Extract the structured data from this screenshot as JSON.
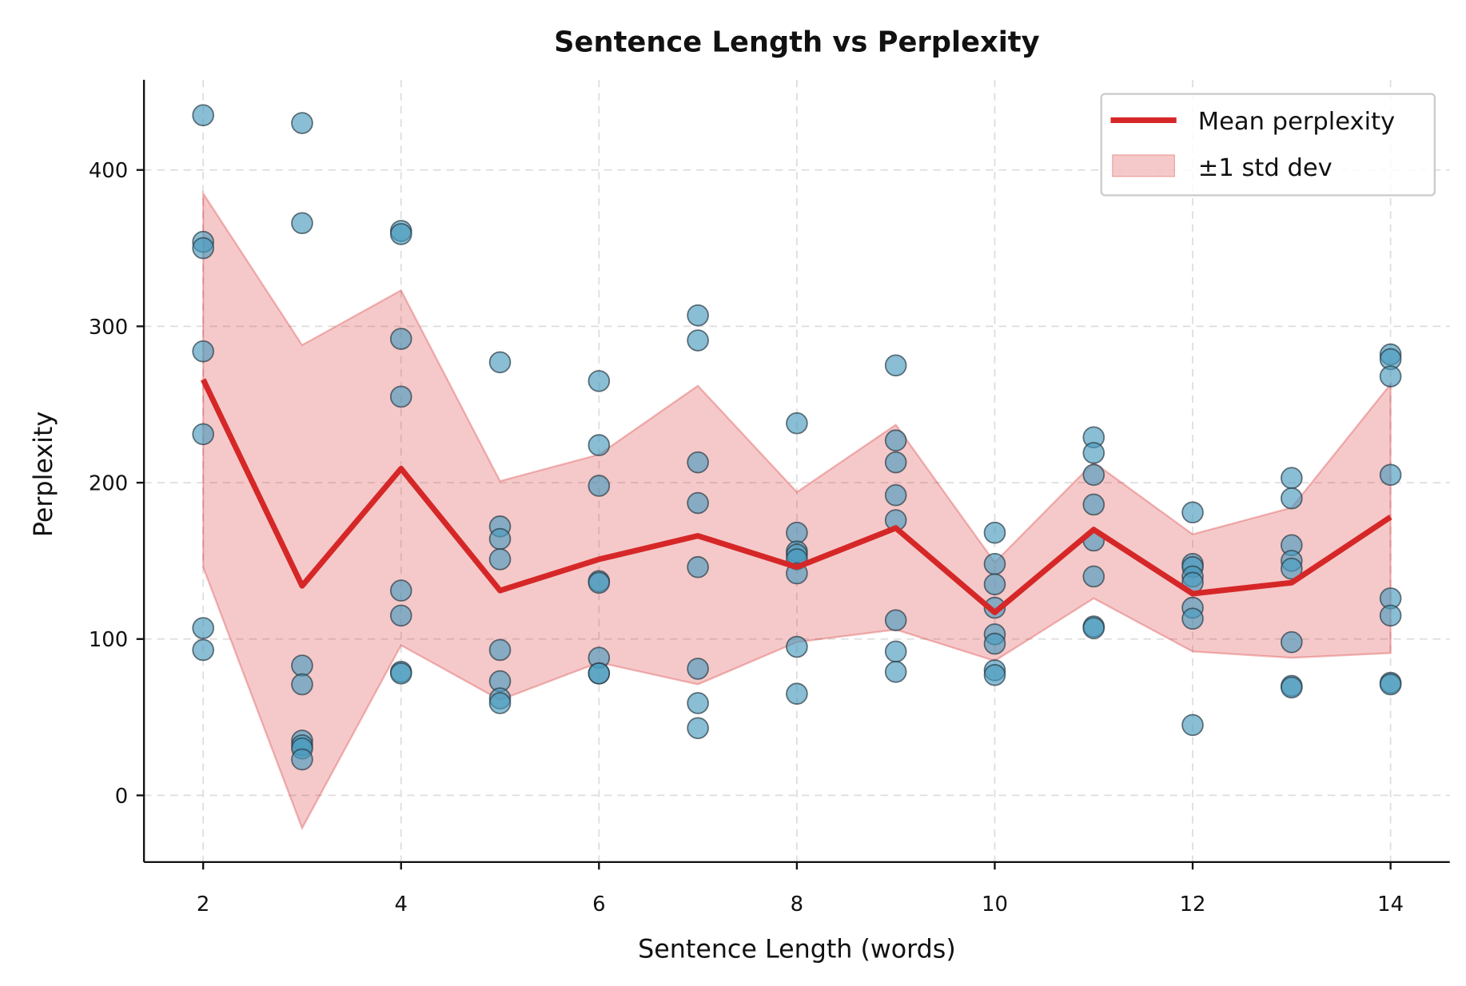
{
  "chart_data": {
    "type": "scatter",
    "title": "Sentence Length vs Perplexity",
    "xlabel": "Sentence Length (words)",
    "ylabel": "Perplexity",
    "xlim": [
      1.4,
      14.6
    ],
    "ylim": [
      -43,
      458
    ],
    "xticks": [
      2,
      4,
      6,
      8,
      10,
      12,
      14
    ],
    "yticks": [
      0,
      100,
      200,
      300,
      400
    ],
    "grid": true,
    "legend_position": "top-right",
    "colors": {
      "points": "#4a9bbf",
      "point_edge": "#2b3a44",
      "mean": "#d62728",
      "band": "#d62728"
    },
    "points": [
      {
        "x": 2,
        "y": [
          435,
          354,
          350,
          284,
          231,
          107,
          93
        ]
      },
      {
        "x": 3,
        "y": [
          430,
          366,
          83,
          71,
          35,
          32,
          30,
          23
        ]
      },
      {
        "x": 4,
        "y": [
          361,
          359,
          292,
          255,
          131,
          115,
          79,
          78
        ]
      },
      {
        "x": 5,
        "y": [
          277,
          172,
          164,
          151,
          93,
          73,
          62,
          59
        ]
      },
      {
        "x": 6,
        "y": [
          265,
          224,
          198,
          137,
          136,
          88,
          78,
          78
        ]
      },
      {
        "x": 7,
        "y": [
          307,
          291,
          213,
          187,
          146,
          81,
          59,
          43
        ]
      },
      {
        "x": 8,
        "y": [
          238,
          168,
          156,
          154,
          151,
          142,
          95,
          65
        ]
      },
      {
        "x": 9,
        "y": [
          275,
          227,
          213,
          192,
          176,
          112,
          92,
          79
        ]
      },
      {
        "x": 10,
        "y": [
          168,
          148,
          135,
          120,
          103,
          97,
          80,
          77
        ]
      },
      {
        "x": 11,
        "y": [
          229,
          219,
          205,
          186,
          163,
          140,
          108,
          107
        ]
      },
      {
        "x": 12,
        "y": [
          181,
          148,
          146,
          140,
          136,
          120,
          113,
          45
        ]
      },
      {
        "x": 13,
        "y": [
          203,
          190,
          160,
          150,
          145,
          98,
          70,
          69
        ]
      },
      {
        "x": 14,
        "y": [
          282,
          279,
          268,
          205,
          126,
          115,
          72,
          71
        ]
      }
    ],
    "series": [
      {
        "name": "Mean perplexity",
        "type": "line",
        "x": [
          2,
          3,
          4,
          5,
          6,
          7,
          8,
          9,
          10,
          11,
          12,
          13,
          14
        ],
        "values": [
          266,
          134,
          209,
          131,
          151,
          166,
          146,
          171,
          117,
          170,
          129,
          136,
          178
        ]
      },
      {
        "name": "±1 std dev",
        "type": "band",
        "x": [
          2,
          3,
          4,
          5,
          6,
          7,
          8,
          9,
          10,
          11,
          12,
          13,
          14
        ],
        "upper": [
          385,
          288,
          323,
          201,
          218,
          262,
          194,
          237,
          149,
          213,
          167,
          184,
          263
        ],
        "lower": [
          146,
          -21,
          96,
          61,
          85,
          71,
          98,
          106,
          86,
          126,
          92,
          88,
          91
        ]
      }
    ]
  }
}
